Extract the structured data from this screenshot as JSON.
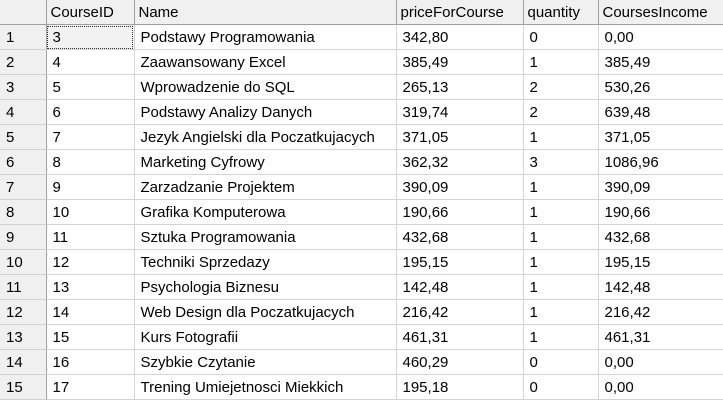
{
  "columns": {
    "row_header": "",
    "course_id": "CourseID",
    "name": "Name",
    "price": "priceForCourse",
    "quantity": "quantity",
    "income": "CoursesIncome"
  },
  "rows": [
    {
      "num": "1",
      "course_id": "3",
      "name": "Podstawy Programowania",
      "price": "342,80",
      "quantity": "0",
      "income": "0,00"
    },
    {
      "num": "2",
      "course_id": "4",
      "name": "Zaawansowany Excel",
      "price": "385,49",
      "quantity": "1",
      "income": "385,49"
    },
    {
      "num": "3",
      "course_id": "5",
      "name": "Wprowadzenie do SQL",
      "price": "265,13",
      "quantity": "2",
      "income": "530,26"
    },
    {
      "num": "4",
      "course_id": "6",
      "name": "Podstawy Analizy Danych",
      "price": "319,74",
      "quantity": "2",
      "income": "639,48"
    },
    {
      "num": "5",
      "course_id": "7",
      "name": "Jezyk Angielski dla Poczatkujacych",
      "price": "371,05",
      "quantity": "1",
      "income": "371,05"
    },
    {
      "num": "6",
      "course_id": "8",
      "name": "Marketing Cyfrowy",
      "price": "362,32",
      "quantity": "3",
      "income": "1086,96"
    },
    {
      "num": "7",
      "course_id": "9",
      "name": "Zarzadzanie Projektem",
      "price": "390,09",
      "quantity": "1",
      "income": "390,09"
    },
    {
      "num": "8",
      "course_id": "10",
      "name": "Grafika Komputerowa",
      "price": "190,66",
      "quantity": "1",
      "income": "190,66"
    },
    {
      "num": "9",
      "course_id": "11",
      "name": "Sztuka Programowania",
      "price": "432,68",
      "quantity": "1",
      "income": "432,68"
    },
    {
      "num": "10",
      "course_id": "12",
      "name": "Techniki Sprzedazy",
      "price": "195,15",
      "quantity": "1",
      "income": "195,15"
    },
    {
      "num": "11",
      "course_id": "13",
      "name": "Psychologia Biznesu",
      "price": "142,48",
      "quantity": "1",
      "income": "142,48"
    },
    {
      "num": "12",
      "course_id": "14",
      "name": "Web Design dla Poczatkujacych",
      "price": "216,42",
      "quantity": "1",
      "income": "216,42"
    },
    {
      "num": "13",
      "course_id": "15",
      "name": "Kurs Fotografii",
      "price": "461,31",
      "quantity": "1",
      "income": "461,31"
    },
    {
      "num": "14",
      "course_id": "16",
      "name": "Szybkie Czytanie",
      "price": "460,29",
      "quantity": "0",
      "income": "0,00"
    },
    {
      "num": "15",
      "course_id": "17",
      "name": "Trening Umiejetnosci Miekkich",
      "price": "195,18",
      "quantity": "0",
      "income": "0,00"
    }
  ]
}
